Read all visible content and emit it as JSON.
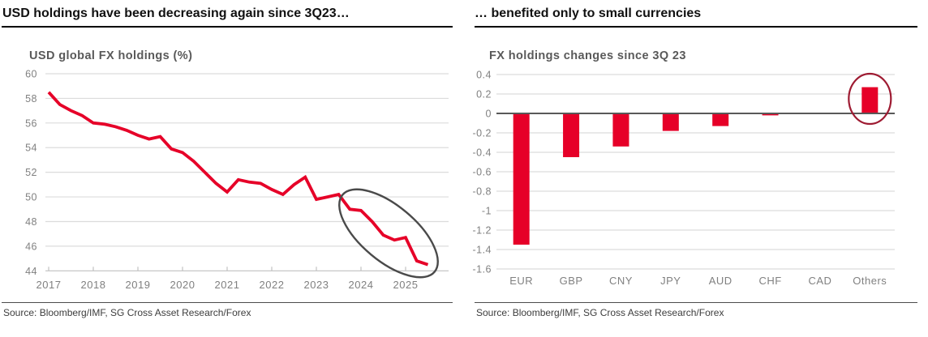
{
  "panels": {
    "left": {
      "header": "USD holdings have been decreasing again since 3Q23…",
      "source": "Source: Bloomberg/IMF, SG Cross Asset Research/Forex"
    },
    "right": {
      "header": "… benefited only to small currencies",
      "source": "Source: Bloomberg/IMF, SG Cross Asset Research/Forex"
    }
  },
  "colors": {
    "accent_red": "#e60028",
    "annotation_gray": "#4a4a4a",
    "highlight_maroon": "#9e1b32",
    "grid": "#dcdcdc",
    "axis_line": "#c0c0c0",
    "zero_line": "#595959",
    "axis_text": "#808080",
    "title_gray": "#595959"
  },
  "chart_data": [
    {
      "type": "line",
      "title": "USD global FX holdings (%)",
      "x_unit": "quarterly",
      "x_start": "2017Q1",
      "x_end": "2025Q3",
      "x_tick_labels": [
        "2017",
        "2018",
        "2019",
        "2020",
        "2021",
        "2022",
        "2023",
        "2024",
        "2025"
      ],
      "values": [
        58.5,
        57.5,
        57.0,
        56.6,
        56.0,
        55.9,
        55.7,
        55.4,
        55.0,
        54.7,
        54.9,
        53.9,
        53.6,
        52.9,
        52.0,
        51.1,
        50.4,
        51.4,
        51.2,
        51.1,
        50.6,
        50.2,
        51.0,
        51.6,
        49.8,
        50.0,
        50.2,
        49.0,
        48.9,
        48.0,
        46.9,
        46.5,
        46.7,
        44.8,
        44.5
      ],
      "ylim": [
        44,
        60
      ],
      "ytick_labels": [
        "60",
        "58",
        "56",
        "54",
        "52",
        "50",
        "48",
        "46",
        "44"
      ],
      "grid": true,
      "legend": "none",
      "annotation": {
        "shape": "ellipse",
        "label": "highlight of decline since 3Q23"
      }
    },
    {
      "type": "bar",
      "title": "FX holdings changes since 3Q 23",
      "categories": [
        "EUR",
        "GBP",
        "CNY",
        "JPY",
        "AUD",
        "CHF",
        "CAD",
        "Others"
      ],
      "values": [
        -1.35,
        -0.45,
        -0.34,
        -0.18,
        -0.13,
        -0.02,
        0.0,
        0.27
      ],
      "ylim": [
        -1.6,
        0.4
      ],
      "ytick_labels": [
        "0.4",
        "0.2",
        "0",
        "-0.2",
        "-0.4",
        "-0.6",
        "-0.8",
        "-1",
        "-1.2",
        "-1.4",
        "-1.6"
      ],
      "grid": true,
      "legend": "none",
      "annotation": {
        "shape": "ellipse",
        "label": "highlight of Others bar",
        "target_category": "Others"
      }
    }
  ]
}
